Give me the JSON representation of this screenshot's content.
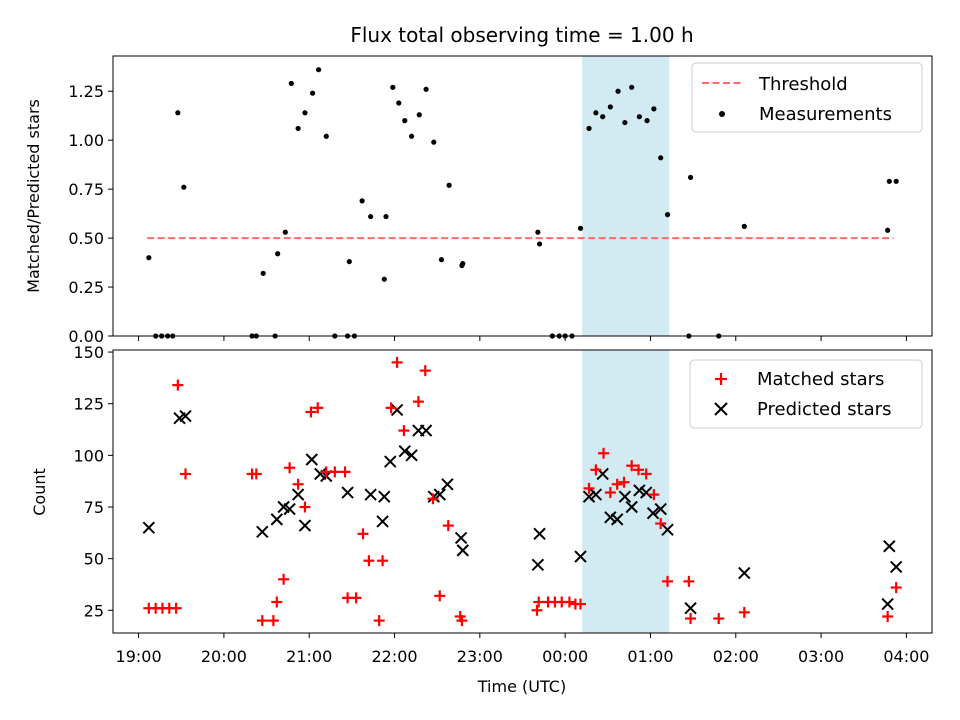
{
  "chart_data": [
    {
      "type": "scatter",
      "title": "Flux total observing time = 1.00 h",
      "xlabel": "",
      "ylabel": "Matched/Predicted stars",
      "xlim_hours": [
        18.7,
        28.3
      ],
      "ylim": [
        0,
        1.43
      ],
      "yticks": [
        0.0,
        0.25,
        0.5,
        0.75,
        1.0,
        1.25
      ],
      "ytick_labels": [
        "0.00",
        "0.25",
        "0.50",
        "0.75",
        "1.00",
        "1.25"
      ],
      "shaded_region_hours": [
        24.2,
        25.22
      ],
      "shaded_color": "#add8e6",
      "legend": {
        "placement": "upper-right",
        "threshold_label": "Threshold",
        "measurements_label": "Measurements"
      },
      "threshold": {
        "value": 0.5,
        "x_range_hours": [
          19.1,
          27.85
        ],
        "color": "#ff6b6b"
      },
      "points_color": "#000000",
      "points_hours": [
        [
          19.12,
          0.4
        ],
        [
          19.2,
          0.0
        ],
        [
          19.27,
          0.0
        ],
        [
          19.34,
          0.0
        ],
        [
          19.4,
          0.0
        ],
        [
          19.46,
          1.14
        ],
        [
          19.53,
          0.76
        ],
        [
          20.33,
          0.0
        ],
        [
          20.38,
          0.0
        ],
        [
          20.46,
          0.32
        ],
        [
          20.6,
          0.0
        ],
        [
          20.63,
          0.42
        ],
        [
          20.72,
          0.53
        ],
        [
          20.79,
          1.29
        ],
        [
          20.87,
          1.06
        ],
        [
          20.95,
          1.14
        ],
        [
          21.04,
          1.24
        ],
        [
          21.11,
          1.36
        ],
        [
          21.2,
          1.02
        ],
        [
          21.3,
          0.0
        ],
        [
          21.45,
          0.0
        ],
        [
          21.47,
          0.38
        ],
        [
          21.53,
          0.0
        ],
        [
          21.62,
          0.69
        ],
        [
          21.72,
          0.61
        ],
        [
          21.88,
          0.29
        ],
        [
          21.9,
          0.61
        ],
        [
          21.98,
          1.27
        ],
        [
          22.05,
          1.19
        ],
        [
          22.12,
          1.1
        ],
        [
          22.2,
          1.02
        ],
        [
          22.29,
          1.13
        ],
        [
          22.37,
          1.26
        ],
        [
          22.46,
          0.99
        ],
        [
          22.55,
          0.39
        ],
        [
          22.64,
          0.77
        ],
        [
          22.79,
          0.36
        ],
        [
          22.8,
          0.37
        ],
        [
          23.68,
          0.53
        ],
        [
          23.7,
          0.47
        ],
        [
          23.85,
          0.0
        ],
        [
          23.93,
          0.0
        ],
        [
          24.0,
          0.0
        ],
        [
          24.08,
          0.0
        ],
        [
          24.18,
          0.55
        ],
        [
          24.28,
          1.06
        ],
        [
          24.36,
          1.14
        ],
        [
          24.44,
          1.12
        ],
        [
          24.53,
          1.17
        ],
        [
          24.62,
          1.25
        ],
        [
          24.7,
          1.09
        ],
        [
          24.78,
          1.27
        ],
        [
          24.87,
          1.12
        ],
        [
          24.96,
          1.1
        ],
        [
          25.04,
          1.16
        ],
        [
          25.12,
          0.91
        ],
        [
          25.2,
          0.62
        ],
        [
          25.45,
          0.0
        ],
        [
          25.47,
          0.81
        ],
        [
          25.8,
          0.0
        ],
        [
          26.1,
          0.56
        ],
        [
          27.78,
          0.54
        ],
        [
          27.8,
          0.79
        ],
        [
          27.88,
          0.79
        ]
      ]
    },
    {
      "type": "scatter",
      "title": "",
      "xlabel": "Time (UTC)",
      "ylabel": "Count",
      "xlim_hours": [
        18.7,
        28.3
      ],
      "ylim": [
        14,
        151
      ],
      "yticks": [
        25,
        50,
        75,
        100,
        125,
        150
      ],
      "ytick_labels": [
        "25",
        "50",
        "75",
        "100",
        "125",
        "150"
      ],
      "xticks_hours": [
        19,
        20,
        21,
        22,
        23,
        24,
        25,
        26,
        27,
        28
      ],
      "xtick_labels": [
        "19:00",
        "20:00",
        "21:00",
        "22:00",
        "23:00",
        "00:00",
        "01:00",
        "02:00",
        "03:00",
        "04:00"
      ],
      "shaded_region_hours": [
        24.2,
        25.22
      ],
      "shaded_color": "#add8e6",
      "legend": {
        "placement": "upper-right",
        "matched_label": "Matched stars",
        "predicted_label": "Predicted stars"
      },
      "matched_color": "#ff0000",
      "predicted_color": "#000000",
      "matched_hours": [
        [
          19.12,
          26
        ],
        [
          19.2,
          26
        ],
        [
          19.28,
          26
        ],
        [
          19.36,
          26
        ],
        [
          19.44,
          26
        ],
        [
          19.46,
          134
        ],
        [
          19.55,
          91
        ],
        [
          20.33,
          91
        ],
        [
          20.38,
          91
        ],
        [
          20.45,
          20
        ],
        [
          20.58,
          20
        ],
        [
          20.62,
          29
        ],
        [
          20.7,
          40
        ],
        [
          20.77,
          94
        ],
        [
          20.87,
          86
        ],
        [
          20.95,
          75
        ],
        [
          21.02,
          121
        ],
        [
          21.1,
          123
        ],
        [
          21.2,
          92
        ],
        [
          21.3,
          92
        ],
        [
          21.42,
          92
        ],
        [
          21.45,
          31
        ],
        [
          21.55,
          31
        ],
        [
          21.63,
          62
        ],
        [
          21.7,
          49
        ],
        [
          21.82,
          20
        ],
        [
          21.86,
          49
        ],
        [
          21.96,
          123
        ],
        [
          22.03,
          145
        ],
        [
          22.11,
          112
        ],
        [
          22.28,
          126
        ],
        [
          22.36,
          141
        ],
        [
          22.45,
          79
        ],
        [
          22.53,
          32
        ],
        [
          22.63,
          66
        ],
        [
          22.77,
          22
        ],
        [
          22.79,
          20
        ],
        [
          23.67,
          25
        ],
        [
          23.69,
          29
        ],
        [
          23.8,
          29
        ],
        [
          23.88,
          29
        ],
        [
          23.96,
          29
        ],
        [
          24.05,
          29
        ],
        [
          24.12,
          28
        ],
        [
          24.18,
          28
        ],
        [
          24.28,
          84
        ],
        [
          24.36,
          93
        ],
        [
          24.45,
          101
        ],
        [
          24.53,
          82
        ],
        [
          24.61,
          86
        ],
        [
          24.69,
          87
        ],
        [
          24.78,
          95
        ],
        [
          24.86,
          93
        ],
        [
          24.95,
          91
        ],
        [
          25.04,
          81
        ],
        [
          25.12,
          67
        ],
        [
          25.2,
          39
        ],
        [
          25.45,
          39
        ],
        [
          25.47,
          21
        ],
        [
          25.8,
          21
        ],
        [
          26.1,
          24
        ],
        [
          27.78,
          22
        ],
        [
          27.88,
          36
        ]
      ],
      "predicted_hours": [
        [
          19.12,
          65
        ],
        [
          19.48,
          118
        ],
        [
          19.55,
          119
        ],
        [
          20.45,
          63
        ],
        [
          20.62,
          69
        ],
        [
          20.7,
          75
        ],
        [
          20.77,
          74
        ],
        [
          20.87,
          81
        ],
        [
          20.95,
          66
        ],
        [
          21.03,
          98
        ],
        [
          21.13,
          91
        ],
        [
          21.2,
          90
        ],
        [
          21.45,
          82
        ],
        [
          21.72,
          81
        ],
        [
          21.86,
          68
        ],
        [
          21.88,
          80
        ],
        [
          21.95,
          97
        ],
        [
          22.03,
          122
        ],
        [
          22.12,
          102
        ],
        [
          22.2,
          100
        ],
        [
          22.28,
          112
        ],
        [
          22.37,
          112
        ],
        [
          22.46,
          80
        ],
        [
          22.53,
          81
        ],
        [
          22.62,
          86
        ],
        [
          22.78,
          60
        ],
        [
          22.8,
          54
        ],
        [
          23.68,
          47
        ],
        [
          23.7,
          62
        ],
        [
          24.18,
          51
        ],
        [
          24.28,
          80
        ],
        [
          24.36,
          81
        ],
        [
          24.44,
          91
        ],
        [
          24.53,
          70
        ],
        [
          24.61,
          69
        ],
        [
          24.7,
          80
        ],
        [
          24.78,
          75
        ],
        [
          24.87,
          83
        ],
        [
          24.95,
          82
        ],
        [
          25.03,
          72
        ],
        [
          25.12,
          74
        ],
        [
          25.2,
          64
        ],
        [
          25.47,
          26
        ],
        [
          26.1,
          43
        ],
        [
          27.78,
          28
        ],
        [
          27.8,
          56
        ],
        [
          27.88,
          46
        ]
      ]
    }
  ]
}
